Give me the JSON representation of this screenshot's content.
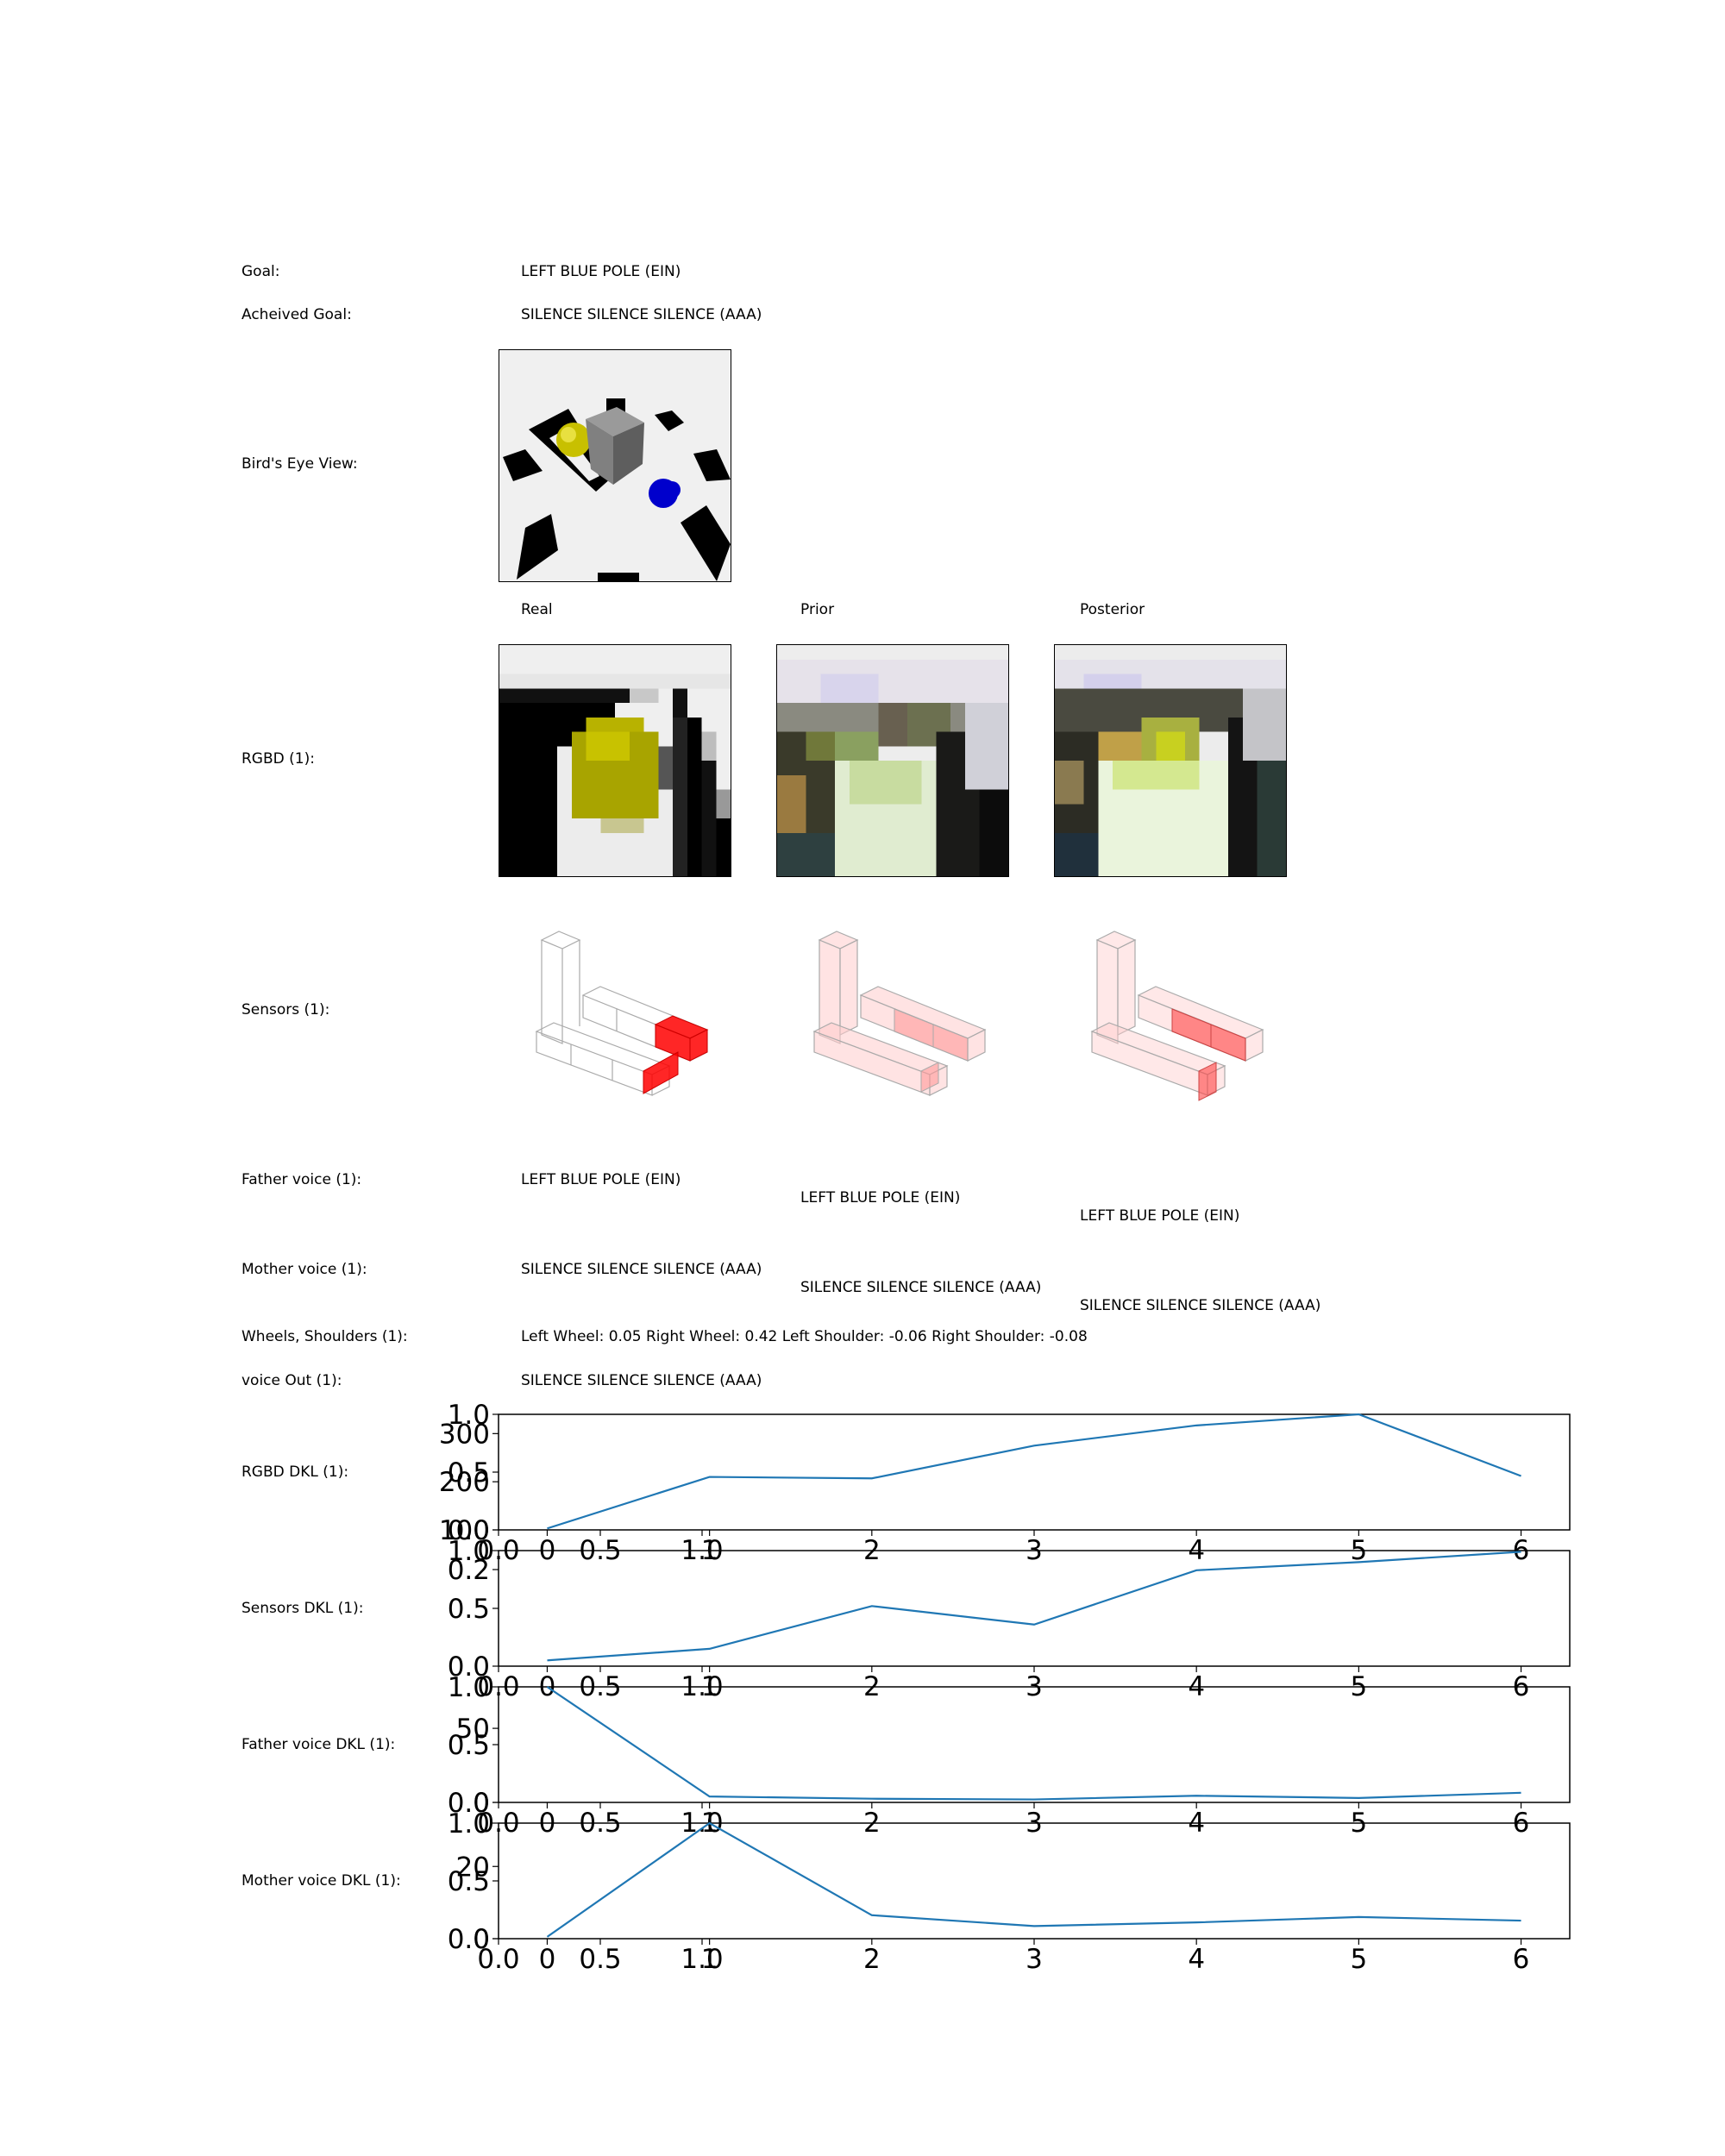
{
  "labels": {
    "goal": "Goal:",
    "achieved_goal": "Acheived Goal:",
    "birds_eye": "Bird's Eye View:",
    "rgbd": "RGBD (1):",
    "sensors": "Sensors (1):",
    "father_voice": "Father voice (1):",
    "mother_voice": "Mother voice (1):",
    "wheels": "Wheels, Shoulders (1):",
    "voice_out": "voice Out (1):",
    "rgbd_dkl": "RGBD DKL (1):",
    "sensors_dkl": "Sensors DKL (1):",
    "father_dkl": "Father voice DKL (1):",
    "mother_dkl": "Mother voice DKL (1):"
  },
  "values": {
    "goal": "LEFT BLUE POLE (EIN)",
    "achieved_goal": "SILENCE SILENCE SILENCE (AAA)",
    "wheels": "Left Wheel: 0.05 Right Wheel: 0.42 Left Shoulder: -0.06 Right Shoulder: -0.08",
    "voice_out": "SILENCE SILENCE SILENCE (AAA)"
  },
  "columns": {
    "real": "Real",
    "prior": "Prior",
    "posterior": "Posterior"
  },
  "father_voice": {
    "real": "LEFT BLUE POLE (EIN)",
    "prior": "LEFT BLUE POLE (EIN)",
    "posterior": "LEFT BLUE POLE (EIN)"
  },
  "mother_voice": {
    "real": "SILENCE SILENCE SILENCE (AAA)",
    "prior": "SILENCE SILENCE SILENCE (AAA)",
    "posterior": "SILENCE SILENCE SILENCE (AAA)"
  },
  "colors": {
    "line": "#1f77b4",
    "sensor_real": "#ff0000",
    "sensor_pred": "#ffcccc"
  },
  "chart_data": [
    {
      "name": "rgbd_dkl",
      "type": "line",
      "x": [
        0,
        1,
        2,
        3,
        4,
        5,
        6
      ],
      "y": [
        103,
        210,
        207,
        275,
        317,
        340,
        212
      ],
      "xlim": [
        -0.3,
        6.3
      ],
      "ylim": [
        100,
        340
      ],
      "xticks": [
        "0",
        "1",
        "2",
        "3",
        "4",
        "5",
        "6"
      ],
      "yticks": [
        "100",
        "200",
        "300"
      ],
      "ytick_values": [
        100,
        200,
        300
      ],
      "overlay_xticks": [
        "0.0",
        "0.5",
        "1.0"
      ],
      "overlay_yticks": [
        "0.0",
        "0.5",
        "1.0"
      ]
    },
    {
      "name": "sensors_dkl",
      "type": "line",
      "x": [
        0,
        1,
        2,
        3,
        4,
        5,
        6
      ],
      "y": [
        0.005,
        0.015,
        0.052,
        0.036,
        0.083,
        0.09,
        0.099
      ],
      "xlim": [
        -0.3,
        6.3
      ],
      "ylim": [
        0,
        0.1
      ],
      "xticks": [
        "0",
        "1",
        "2",
        "3",
        "4",
        "5",
        "6"
      ],
      "yticks": [
        "0.0",
        "0.5",
        "1.0"
      ],
      "overlay_yticks": [
        "0.2"
      ],
      "overlay_xticks": [
        "0.0",
        "0.5",
        "1.0"
      ]
    },
    {
      "name": "father_voice_dkl",
      "type": "line",
      "x": [
        0,
        1,
        2,
        3,
        4,
        5,
        6
      ],
      "y": [
        78,
        4,
        2.5,
        2,
        4.5,
        3,
        6.5
      ],
      "xlim": [
        -0.3,
        6.3
      ],
      "ylim": [
        0,
        78
      ],
      "xticks": [
        "0",
        "1",
        "2",
        "3",
        "4",
        "5",
        "6"
      ],
      "yticks": [
        "0",
        "50"
      ],
      "ytick_values": [
        0,
        50
      ],
      "overlay_xticks": [
        "0.0",
        "0.5",
        "1.0"
      ],
      "overlay_yticks": [
        "0.0",
        "0.5",
        "1.0"
      ]
    },
    {
      "name": "mother_voice_dkl",
      "type": "line",
      "x": [
        0,
        1,
        2,
        3,
        4,
        5,
        6
      ],
      "y": [
        0.5,
        32,
        6.5,
        3.5,
        4.5,
        6,
        5
      ],
      "xlim": [
        -0.3,
        6.3
      ],
      "ylim": [
        0,
        32
      ],
      "xticks": [
        "0",
        "1",
        "2",
        "3",
        "4",
        "5",
        "6"
      ],
      "yticks": [
        "0",
        "20"
      ],
      "ytick_values": [
        0,
        20
      ],
      "overlay_xticks": [
        "0.0",
        "0.5",
        "1.0"
      ],
      "overlay_yticks": [
        "0.0",
        "0.5",
        "1.0"
      ]
    }
  ]
}
